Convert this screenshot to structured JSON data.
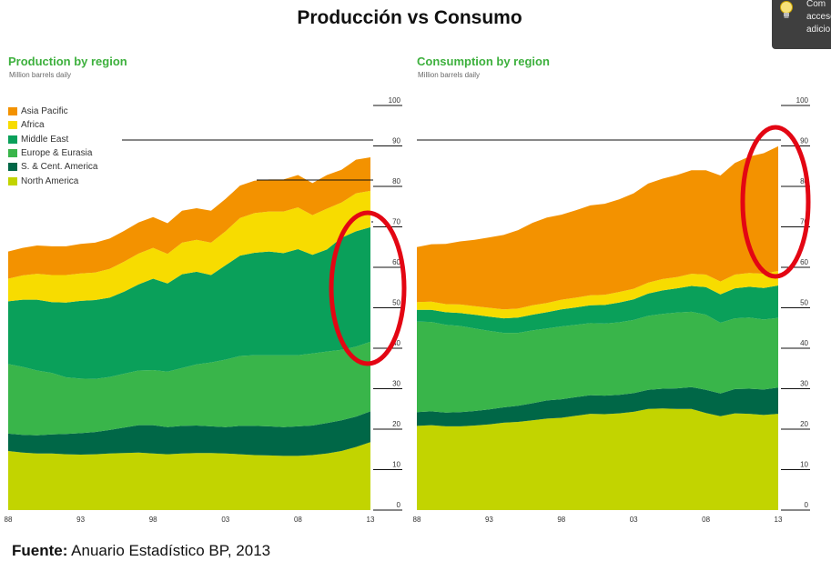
{
  "title": "Producción vs Consumo",
  "source": {
    "label": "Fuente:",
    "text": " Anuario Estadístico BP, 2013"
  },
  "tooltip": {
    "lines": [
      "Com",
      "acceso",
      "adicio"
    ],
    "icon": "lightbulb-icon"
  },
  "colors": {
    "Asia Pacific": "#f39200",
    "Africa": "#f7dc00",
    "Middle East": "#0aa05a",
    "Europe & Eurasia": "#39b54a",
    "S. & Cent. America": "#006747",
    "North America": "#c2d400",
    "highlight": "#e30613"
  },
  "chart_data": [
    {
      "type": "area",
      "stacked": true,
      "title": "Production by region",
      "subtitle": "Million barrels daily",
      "x_tick_labels": [
        "88",
        "93",
        "98",
        "03",
        "08",
        "13"
      ],
      "y_tick_labels": [
        "0",
        "10",
        "20",
        "30",
        "40",
        "50",
        "60",
        "70",
        "80",
        "90",
        "100"
      ],
      "ylim": [
        0,
        100
      ],
      "xlim": [
        1988,
        2013
      ],
      "legend": "top-left",
      "highlight_years": [
        2013
      ],
      "x": [
        1988,
        1989,
        1990,
        1991,
        1992,
        1993,
        1994,
        1995,
        1996,
        1997,
        1998,
        1999,
        2000,
        2001,
        2002,
        2003,
        2004,
        2005,
        2006,
        2007,
        2008,
        2009,
        2010,
        2011,
        2012,
        2013
      ],
      "series": [
        {
          "name": "North America",
          "values": [
            14.6,
            14.2,
            14.0,
            14.0,
            13.8,
            13.7,
            13.8,
            14.0,
            14.1,
            14.2,
            14.0,
            13.8,
            14.0,
            14.1,
            14.1,
            14.0,
            13.8,
            13.6,
            13.5,
            13.4,
            13.4,
            13.6,
            14.0,
            14.6,
            15.6,
            16.8
          ]
        },
        {
          "name": "S. & Cent. America",
          "values": [
            4.3,
            4.4,
            4.5,
            4.7,
            5.0,
            5.3,
            5.5,
            5.8,
            6.3,
            6.8,
            7.0,
            6.7,
            6.8,
            6.8,
            6.6,
            6.5,
            7.0,
            7.2,
            7.2,
            7.1,
            7.3,
            7.3,
            7.5,
            7.6,
            7.5,
            7.6
          ]
        },
        {
          "name": "Europe & Eurasia",
          "values": [
            17.2,
            16.8,
            16.0,
            15.2,
            14.0,
            13.5,
            13.1,
            13.1,
            13.3,
            13.5,
            13.6,
            13.7,
            14.3,
            15.1,
            15.8,
            16.7,
            17.3,
            17.5,
            17.6,
            17.8,
            17.6,
            17.8,
            17.7,
            17.4,
            17.3,
            17.2
          ]
        },
        {
          "name": "Middle East",
          "values": [
            15.5,
            16.6,
            17.5,
            17.5,
            18.5,
            19.2,
            19.5,
            19.6,
            20.3,
            21.3,
            22.6,
            21.8,
            23.2,
            22.9,
            21.6,
            23.3,
            24.8,
            25.3,
            25.6,
            25.2,
            26.2,
            24.4,
            25.2,
            27.7,
            28.5,
            28.3
          ]
        },
        {
          "name": "Africa",
          "values": [
            5.6,
            6.0,
            6.4,
            6.7,
            6.8,
            6.8,
            6.8,
            7.1,
            7.4,
            7.6,
            7.6,
            7.3,
            7.8,
            7.9,
            8.0,
            8.4,
            9.3,
            9.8,
            9.9,
            10.3,
            10.3,
            9.8,
            10.1,
            8.7,
            9.4,
            9.0
          ]
        },
        {
          "name": "Asia Pacific",
          "values": [
            6.7,
            6.8,
            7.0,
            7.1,
            7.1,
            7.3,
            7.4,
            7.5,
            7.6,
            7.7,
            7.6,
            7.6,
            7.9,
            7.8,
            7.9,
            8.0,
            8.0,
            8.0,
            7.9,
            7.9,
            8.0,
            7.9,
            8.3,
            8.1,
            8.3,
            8.3
          ]
        }
      ]
    },
    {
      "type": "area",
      "stacked": true,
      "title": "Consumption by region",
      "subtitle": "Million barrels daily",
      "x_tick_labels": [
        "88",
        "93",
        "98",
        "03",
        "08",
        "13"
      ],
      "y_tick_labels": [
        "0",
        "10",
        "20",
        "30",
        "40",
        "50",
        "60",
        "70",
        "80",
        "90",
        "100"
      ],
      "ylim": [
        0,
        100
      ],
      "xlim": [
        1988,
        2013
      ],
      "highlight_years": [
        2013
      ],
      "x": [
        1988,
        1989,
        1990,
        1991,
        1992,
        1993,
        1994,
        1995,
        1996,
        1997,
        1998,
        1999,
        2000,
        2001,
        2002,
        2003,
        2004,
        2005,
        2006,
        2007,
        2008,
        2009,
        2010,
        2011,
        2012,
        2013
      ],
      "series": [
        {
          "name": "North America",
          "values": [
            20.8,
            21.0,
            20.7,
            20.7,
            20.9,
            21.2,
            21.6,
            21.8,
            22.2,
            22.6,
            22.8,
            23.3,
            23.8,
            23.7,
            23.9,
            24.3,
            25.0,
            25.1,
            25.0,
            25.0,
            24.0,
            23.2,
            23.9,
            23.8,
            23.5,
            23.8
          ]
        },
        {
          "name": "S. & Cent. America",
          "values": [
            3.4,
            3.4,
            3.4,
            3.5,
            3.6,
            3.7,
            3.8,
            4.0,
            4.2,
            4.5,
            4.6,
            4.6,
            4.6,
            4.6,
            4.6,
            4.6,
            4.7,
            4.9,
            5.1,
            5.4,
            5.7,
            5.6,
            6.0,
            6.2,
            6.3,
            6.5
          ]
        },
        {
          "name": "Europe & Eurasia",
          "values": [
            22.4,
            22.1,
            21.7,
            21.3,
            20.4,
            19.4,
            18.4,
            18.0,
            18.0,
            17.8,
            18.0,
            17.9,
            17.8,
            17.8,
            17.9,
            18.1,
            18.3,
            18.5,
            18.7,
            18.6,
            18.6,
            17.5,
            17.5,
            17.6,
            17.3,
            17.2
          ]
        },
        {
          "name": "Middle East",
          "values": [
            2.9,
            3.0,
            3.1,
            3.2,
            3.4,
            3.5,
            3.6,
            3.8,
            3.9,
            4.0,
            4.2,
            4.3,
            4.4,
            4.6,
            4.9,
            5.1,
            5.5,
            5.8,
            6.0,
            6.4,
            6.8,
            7.0,
            7.4,
            7.6,
            7.8,
            8.0
          ]
        },
        {
          "name": "Africa",
          "values": [
            1.9,
            2.0,
            2.0,
            2.1,
            2.1,
            2.2,
            2.2,
            2.2,
            2.3,
            2.3,
            2.4,
            2.4,
            2.5,
            2.5,
            2.6,
            2.6,
            2.7,
            2.8,
            2.8,
            3.0,
            3.1,
            3.2,
            3.4,
            3.4,
            3.5,
            3.6
          ]
        },
        {
          "name": "Asia Pacific",
          "values": [
            13.6,
            14.2,
            14.9,
            15.6,
            16.4,
            17.4,
            18.4,
            19.4,
            20.4,
            21.1,
            21.0,
            21.6,
            22.2,
            22.5,
            22.9,
            23.6,
            24.5,
            24.8,
            25.2,
            25.6,
            25.8,
            26.2,
            27.6,
            28.8,
            29.8,
            30.8
          ]
        }
      ]
    }
  ]
}
